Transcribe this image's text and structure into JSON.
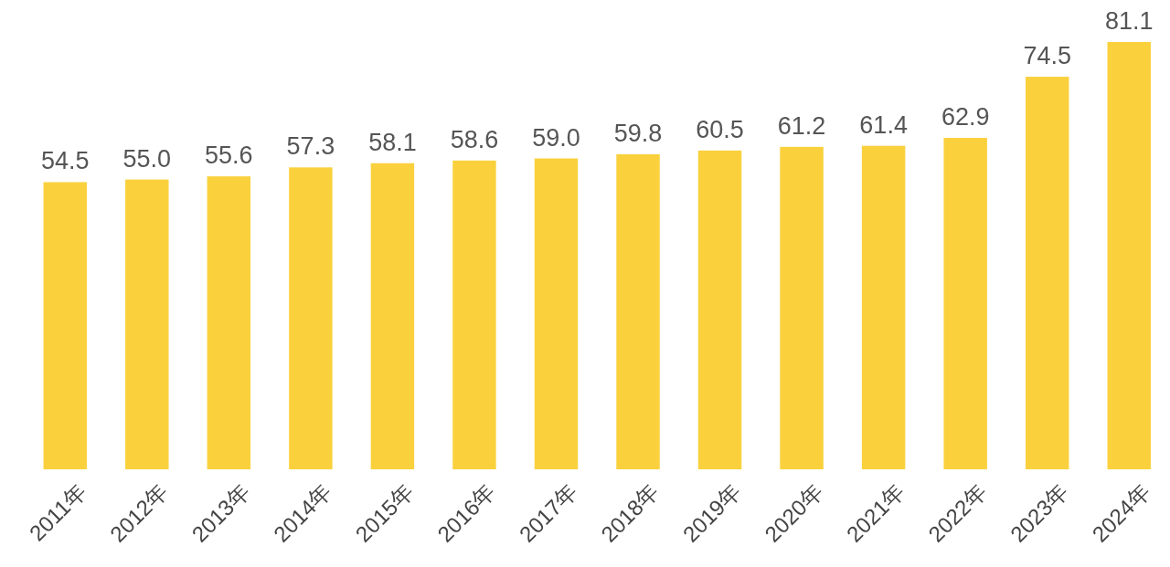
{
  "chart_data": {
    "type": "bar",
    "categories": [
      "2011年",
      "2012年",
      "2013年",
      "2014年",
      "2015年",
      "2016年",
      "2017年",
      "2018年",
      "2019年",
      "2020年",
      "2021年",
      "2022年",
      "2023年",
      "2024年"
    ],
    "values": [
      54.5,
      55.0,
      55.6,
      57.3,
      58.1,
      58.6,
      59.0,
      59.8,
      60.5,
      61.2,
      61.4,
      62.9,
      74.5,
      81.1
    ],
    "value_labels": [
      "54.5",
      "55.0",
      "55.6",
      "57.3",
      "58.1",
      "58.6",
      "59.0",
      "59.8",
      "60.5",
      "61.2",
      "61.4",
      "62.9",
      "74.5",
      "81.1"
    ],
    "color": "#fad13d"
  }
}
